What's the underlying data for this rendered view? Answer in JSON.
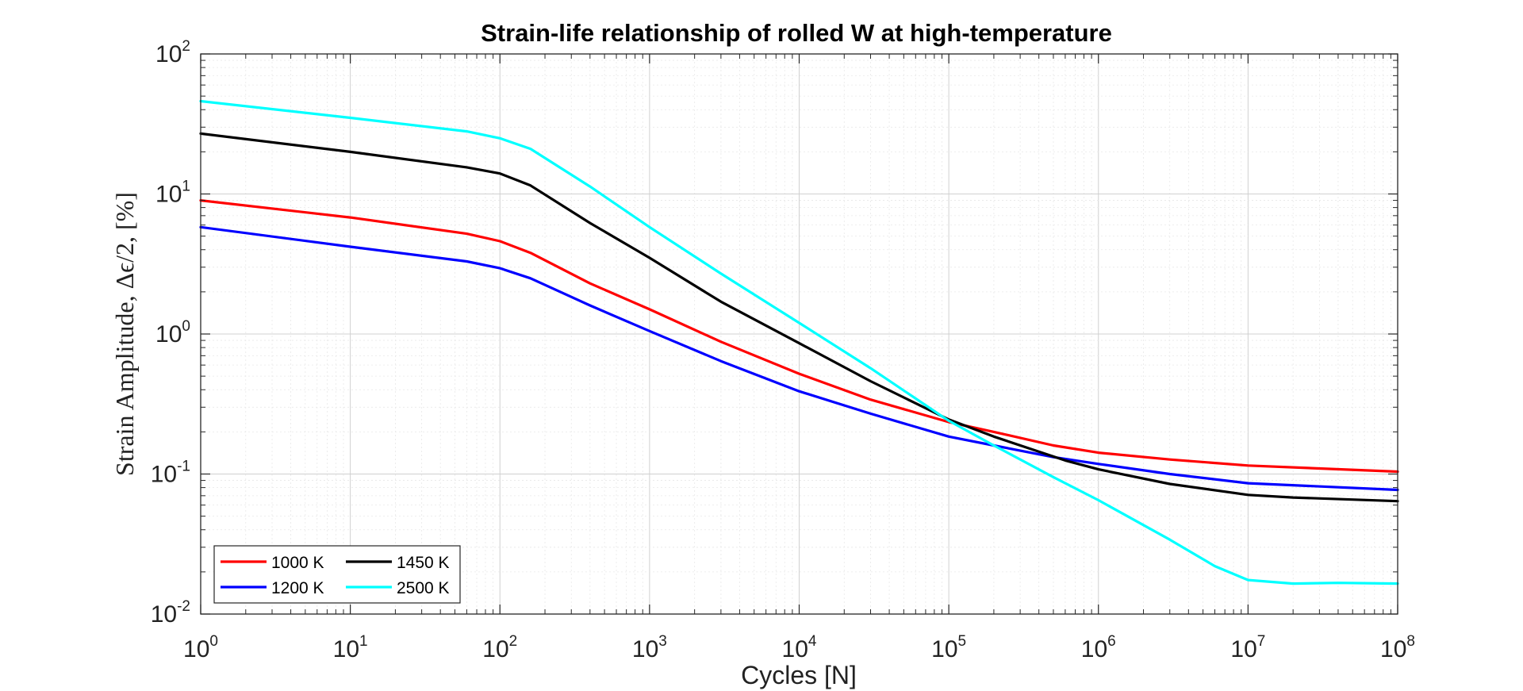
{
  "chart_data": {
    "type": "line",
    "title": "Strain-life relationship of rolled W at high-temperature",
    "xlabel": "Cycles [N]",
    "ylabel": "Strain Amplitude, Δϵ/2, [%]",
    "x_scale": "log",
    "y_scale": "log",
    "xlim": [
      1,
      100000000
    ],
    "ylim": [
      0.01,
      100
    ],
    "x_ticks": [
      {
        "base": "10",
        "exp": "0"
      },
      {
        "base": "10",
        "exp": "1"
      },
      {
        "base": "10",
        "exp": "2"
      },
      {
        "base": "10",
        "exp": "3"
      },
      {
        "base": "10",
        "exp": "4"
      },
      {
        "base": "10",
        "exp": "5"
      },
      {
        "base": "10",
        "exp": "6"
      },
      {
        "base": "10",
        "exp": "7"
      },
      {
        "base": "10",
        "exp": "8"
      }
    ],
    "y_ticks": [
      {
        "base": "10",
        "exp": "-2"
      },
      {
        "base": "10",
        "exp": "-1"
      },
      {
        "base": "10",
        "exp": "0"
      },
      {
        "base": "10",
        "exp": "1"
      },
      {
        "base": "10",
        "exp": "2"
      }
    ],
    "grid": true,
    "minor_grid": true,
    "legend_position": "bottom-left",
    "series": [
      {
        "name": "1000 K",
        "color": "#ff0000",
        "x": [
          1,
          10,
          60,
          100,
          160,
          400,
          1000,
          3000,
          10000,
          30000,
          100000,
          200000,
          500000,
          1000000,
          3000000,
          10000000,
          100000000
        ],
        "y": [
          9,
          6.8,
          5.2,
          4.6,
          3.8,
          2.3,
          1.5,
          0.88,
          0.52,
          0.34,
          0.235,
          0.2,
          0.16,
          0.142,
          0.127,
          0.115,
          0.104
        ]
      },
      {
        "name": "1200 K",
        "color": "#0000ff",
        "x": [
          1,
          10,
          60,
          100,
          160,
          400,
          1000,
          3000,
          10000,
          30000,
          100000,
          200000,
          500000,
          1000000,
          3000000,
          10000000,
          100000000
        ],
        "y": [
          5.8,
          4.2,
          3.3,
          2.95,
          2.5,
          1.6,
          1.05,
          0.64,
          0.39,
          0.27,
          0.185,
          0.16,
          0.132,
          0.118,
          0.1,
          0.086,
          0.077
        ]
      },
      {
        "name": "1450 K",
        "color": "#000000",
        "x": [
          1,
          10,
          60,
          100,
          160,
          400,
          1000,
          3000,
          10000,
          30000,
          100000,
          200000,
          600000,
          1000000,
          3000000,
          10000000,
          20000000,
          100000000
        ],
        "y": [
          27,
          20,
          15.5,
          14,
          11.5,
          6.2,
          3.5,
          1.7,
          0.86,
          0.46,
          0.245,
          0.185,
          0.125,
          0.108,
          0.085,
          0.071,
          0.068,
          0.064
        ]
      },
      {
        "name": "2500 K",
        "color": "#00ffff",
        "x": [
          1,
          10,
          60,
          100,
          160,
          400,
          1000,
          3000,
          10000,
          30000,
          100000,
          200000,
          500000,
          1000000,
          3000000,
          6000000,
          10000000,
          20000000,
          40000000,
          100000000
        ],
        "y": [
          46,
          35,
          28,
          25,
          21,
          11.3,
          5.8,
          2.7,
          1.2,
          0.57,
          0.24,
          0.16,
          0.095,
          0.065,
          0.034,
          0.022,
          0.0175,
          0.0165,
          0.0167,
          0.0165
        ]
      }
    ]
  }
}
